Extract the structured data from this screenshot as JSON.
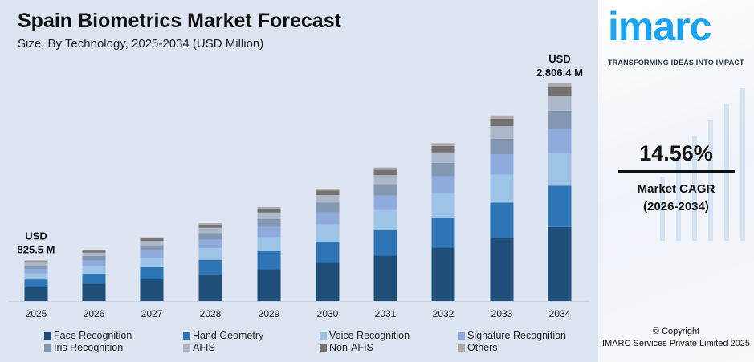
{
  "chart_data": {
    "type": "bar",
    "stacked": true,
    "title": "Spain Biometrics Market Forecast",
    "subtitle": "Size, By Technology, 2025-2034 (USD Million)",
    "categories": [
      "2025",
      "2026",
      "2027",
      "2028",
      "2029",
      "2030",
      "2031",
      "2032",
      "2033",
      "2034"
    ],
    "totals": [
      825.5,
      945.7,
      1083.4,
      1241.1,
      1421.8,
      1628.8,
      1865.9,
      2137.6,
      2448.8,
      2806.4
    ],
    "series": [
      {
        "name": "Face Recognition",
        "share": 0.34,
        "color": "#1f4e79"
      },
      {
        "name": "Hand Geometry",
        "share": 0.19,
        "color": "#2e75b6"
      },
      {
        "name": "Voice Recognition",
        "share": 0.15,
        "color": "#9dc3e6"
      },
      {
        "name": "Signature Recognition",
        "share": 0.11,
        "color": "#8faadc"
      },
      {
        "name": "Iris Recognition",
        "share": 0.085,
        "color": "#8497b0"
      },
      {
        "name": "AFIS",
        "share": 0.067,
        "color": "#adb9ca"
      },
      {
        "name": "Non-AFIS",
        "share": 0.04,
        "color": "#767171"
      },
      {
        "name": "Others",
        "share": 0.018,
        "color": "#aeaaaa"
      }
    ],
    "annotations": [
      {
        "category": "2025",
        "line1": "USD",
        "line2": "825.5 M"
      },
      {
        "category": "2034",
        "line1": "USD",
        "line2": "2,806.4 M"
      }
    ],
    "grid": false,
    "legend": "bottom"
  },
  "brand": {
    "logo": "imarc",
    "tagline": "TRANSFORMING IDEAS INTO IMPACT"
  },
  "cagr": {
    "value": "14.56%",
    "label": "Market CAGR",
    "period": "(2026-2034)"
  },
  "copyright": {
    "line1": "© Copyright",
    "line2": "IMARC Services Private Limited 2025"
  }
}
